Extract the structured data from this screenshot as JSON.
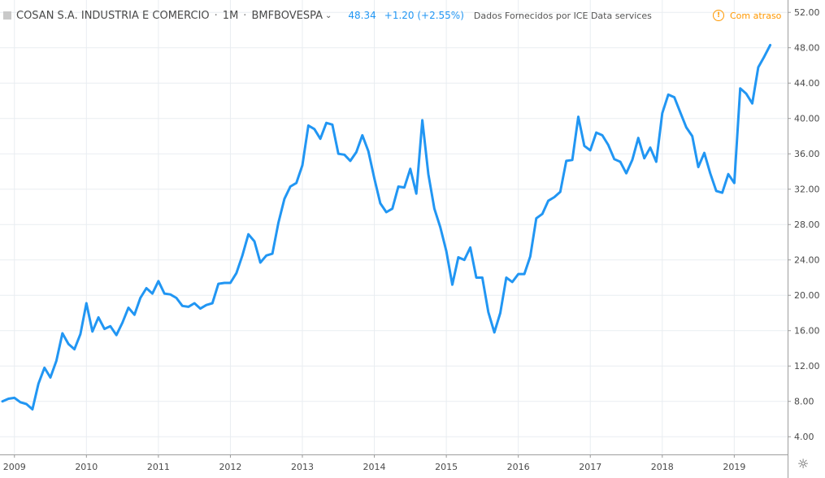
{
  "legend": {
    "symbol": "COSAN S.A. INDUSTRIA E COMERCIO",
    "interval": "1M",
    "exchange": "BMFBOVESPA",
    "last": "48.34",
    "change": "+1.20 (+2.55%)",
    "provider": "Dados Fornecidos por ICE Data services"
  },
  "delay_badge": {
    "label": "Com atraso",
    "icon": "!"
  },
  "colors": {
    "line": "#2196f3",
    "grid": "#e9edf1",
    "axis_text": "#4a4a4a",
    "delay": "#ff9800"
  },
  "chart_data": {
    "type": "line",
    "series": [
      {
        "values": [
          8.0,
          8.3,
          8.4,
          7.9,
          7.7,
          7.1,
          10.0,
          11.8,
          10.7,
          12.6,
          15.7,
          14.5,
          13.9,
          15.6,
          19.1,
          15.9,
          17.5,
          16.2,
          16.5,
          15.5,
          16.9,
          18.6,
          17.8,
          19.7,
          20.8,
          20.2,
          21.6,
          20.2,
          20.1,
          19.7,
          18.8,
          18.7,
          19.1,
          18.5,
          18.9,
          19.1,
          21.3,
          21.4,
          21.4,
          22.5,
          24.5,
          26.9,
          26.1,
          23.7,
          24.5,
          24.7,
          28.2,
          30.9,
          32.3,
          32.7,
          34.7,
          39.2,
          38.8,
          37.7,
          39.5,
          39.3,
          36.0,
          35.9,
          35.2,
          36.2,
          38.1,
          36.3,
          33.2,
          30.4,
          29.4,
          29.8,
          32.3,
          32.2,
          34.3,
          31.5,
          39.8,
          33.7,
          29.8,
          27.7,
          25.0,
          21.2,
          24.3,
          24.0,
          25.4,
          22.0,
          22.0,
          18.1,
          15.8,
          18.0,
          22.0,
          21.5,
          22.4,
          22.4,
          24.4,
          28.7,
          29.2,
          30.7,
          31.1,
          31.7,
          35.2,
          35.3,
          40.2,
          36.9,
          36.4,
          38.4,
          38.1,
          37.0,
          35.4,
          35.1,
          33.8,
          35.3,
          37.8,
          35.5,
          36.7,
          35.1,
          40.6,
          42.7,
          42.4,
          40.7,
          39.0,
          38.0,
          34.5,
          36.1,
          33.8,
          31.8,
          31.6,
          33.7,
          32.7,
          43.4,
          42.8,
          41.7,
          45.8,
          47.0,
          48.3
        ]
      }
    ],
    "x_start": "2008-11",
    "x_interval": "1M",
    "x_tick_labels": [
      "2009",
      "2010",
      "2011",
      "2012",
      "2013",
      "2014",
      "2015",
      "2016",
      "2017",
      "2018",
      "2019"
    ],
    "y_ticks": [
      "4.00",
      "8.00",
      "12.00",
      "16.00",
      "20.00",
      "24.00",
      "28.00",
      "32.00",
      "36.00",
      "40.00",
      "44.00",
      "48.00",
      "52.00"
    ],
    "ylim": [
      2,
      53.4
    ],
    "grid": true,
    "legend": "top-left"
  }
}
